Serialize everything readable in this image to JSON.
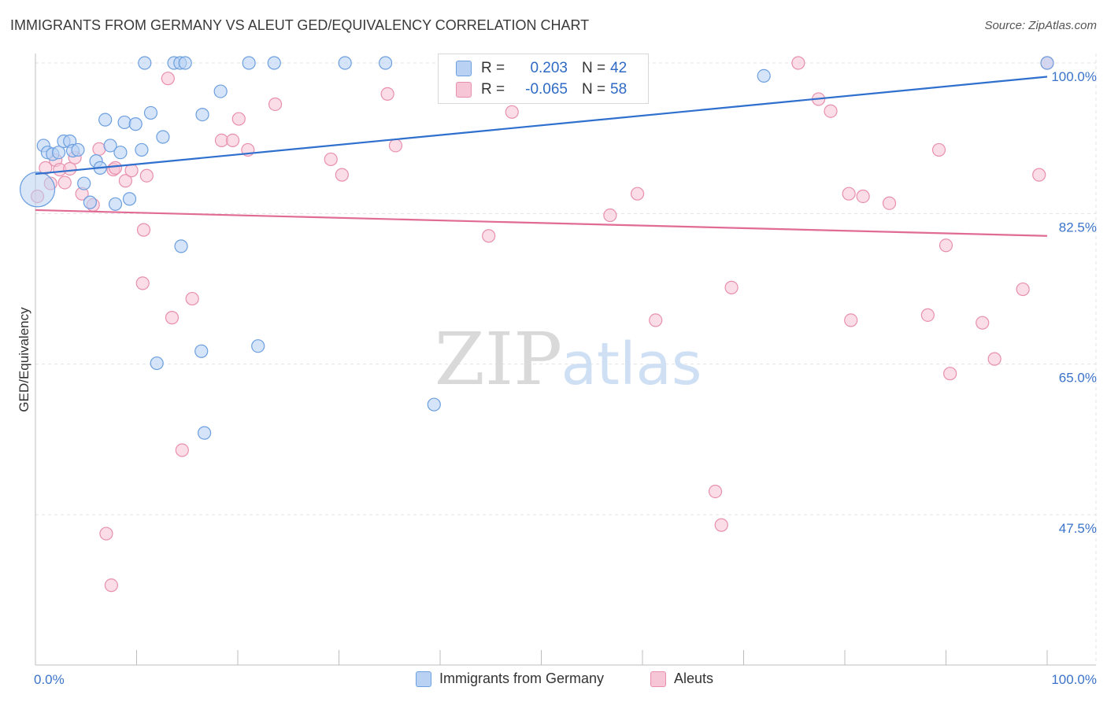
{
  "header": {
    "title": "IMMIGRANTS FROM GERMANY VS ALEUT GED/EQUIVALENCY CORRELATION CHART",
    "source": "Source: ZipAtlas.com"
  },
  "legend": {
    "r_label": "R =",
    "n_label": "N =",
    "series": [
      {
        "name": "Immigrants from Germany",
        "r": "0.203",
        "n": "42"
      },
      {
        "name": "Aleuts",
        "r": "-0.065",
        "n": "58"
      }
    ]
  },
  "watermark": {
    "part1": "ZIP",
    "part2": "atlas"
  },
  "colors": {
    "blue_fill": "#b9d2f3",
    "blue_stroke": "#6c9fdf",
    "blue_line": "#2f6fcd",
    "pink_fill": "#f7c6d6",
    "pink_stroke": "#e88fae",
    "pink_line": "#e06b95",
    "axis_label": "#3a73c9",
    "grid": "#e3e3e3"
  },
  "chart_data": {
    "type": "scatter",
    "ylabel": "GED/Equivalency",
    "xlim": [
      0,
      100
    ],
    "ylim": [
      30,
      101
    ],
    "x_tick_labels": [
      {
        "value": 0,
        "label": "0.0%"
      },
      {
        "value": 100,
        "label": "100.0%"
      }
    ],
    "y_tick_labels": [
      {
        "value": 100,
        "label": "100.0%"
      },
      {
        "value": 82.5,
        "label": "82.5%"
      },
      {
        "value": 65,
        "label": "65.0%"
      },
      {
        "value": 47.5,
        "label": "47.5%"
      }
    ],
    "series": [
      {
        "name": "Immigrants from Germany",
        "trend": {
          "x": [
            0,
            100
          ],
          "y": [
            87.1,
            98.4
          ]
        },
        "points": [
          {
            "x": 0.2,
            "y": 85.3,
            "big": true
          },
          {
            "x": 0.8,
            "y": 90.4
          },
          {
            "x": 1.2,
            "y": 89.6
          },
          {
            "x": 1.7,
            "y": 89.4
          },
          {
            "x": 2.3,
            "y": 89.6
          },
          {
            "x": 2.8,
            "y": 90.9
          },
          {
            "x": 3.4,
            "y": 90.9
          },
          {
            "x": 3.7,
            "y": 89.8
          },
          {
            "x": 4.2,
            "y": 89.9
          },
          {
            "x": 4.8,
            "y": 86.0
          },
          {
            "x": 5.4,
            "y": 83.8
          },
          {
            "x": 6.0,
            "y": 88.6
          },
          {
            "x": 6.4,
            "y": 87.8
          },
          {
            "x": 6.9,
            "y": 93.4
          },
          {
            "x": 7.4,
            "y": 90.4
          },
          {
            "x": 7.9,
            "y": 83.6
          },
          {
            "x": 8.4,
            "y": 89.6
          },
          {
            "x": 8.8,
            "y": 93.1
          },
          {
            "x": 9.3,
            "y": 84.2
          },
          {
            "x": 9.9,
            "y": 92.9
          },
          {
            "x": 10.5,
            "y": 89.9
          },
          {
            "x": 10.8,
            "y": 100.0
          },
          {
            "x": 11.4,
            "y": 94.2
          },
          {
            "x": 12.0,
            "y": 65.1
          },
          {
            "x": 12.6,
            "y": 91.4
          },
          {
            "x": 13.7,
            "y": 100.0
          },
          {
            "x": 14.3,
            "y": 100.0
          },
          {
            "x": 14.8,
            "y": 100.0
          },
          {
            "x": 14.4,
            "y": 78.7
          },
          {
            "x": 16.5,
            "y": 94.0
          },
          {
            "x": 16.4,
            "y": 66.5
          },
          {
            "x": 16.7,
            "y": 57.0
          },
          {
            "x": 18.3,
            "y": 96.7
          },
          {
            "x": 21.1,
            "y": 100.0
          },
          {
            "x": 22.0,
            "y": 67.1
          },
          {
            "x": 23.6,
            "y": 100.0
          },
          {
            "x": 30.6,
            "y": 100.0
          },
          {
            "x": 34.6,
            "y": 100.0
          },
          {
            "x": 39.4,
            "y": 60.3
          },
          {
            "x": 47.7,
            "y": 100.0
          },
          {
            "x": 72.0,
            "y": 98.5
          },
          {
            "x": 100.0,
            "y": 100.0
          }
        ]
      },
      {
        "name": "Aleuts",
        "trend": {
          "x": [
            0,
            100
          ],
          "y": [
            82.9,
            79.9
          ]
        },
        "points": [
          {
            "x": 0.2,
            "y": 84.5
          },
          {
            "x": 1.0,
            "y": 87.8
          },
          {
            "x": 1.5,
            "y": 86.0
          },
          {
            "x": 2.0,
            "y": 88.7
          },
          {
            "x": 2.4,
            "y": 87.6
          },
          {
            "x": 2.9,
            "y": 86.1
          },
          {
            "x": 3.4,
            "y": 87.7
          },
          {
            "x": 3.9,
            "y": 89.0
          },
          {
            "x": 4.6,
            "y": 84.8
          },
          {
            "x": 5.7,
            "y": 83.5
          },
          {
            "x": 6.3,
            "y": 90.0
          },
          {
            "x": 7.0,
            "y": 45.3
          },
          {
            "x": 7.7,
            "y": 87.6
          },
          {
            "x": 7.5,
            "y": 39.3
          },
          {
            "x": 7.9,
            "y": 87.8
          },
          {
            "x": 8.9,
            "y": 86.3
          },
          {
            "x": 9.5,
            "y": 87.5
          },
          {
            "x": 10.7,
            "y": 80.6
          },
          {
            "x": 10.6,
            "y": 74.4
          },
          {
            "x": 11.0,
            "y": 86.9
          },
          {
            "x": 13.1,
            "y": 98.2
          },
          {
            "x": 13.5,
            "y": 70.4
          },
          {
            "x": 14.5,
            "y": 55.0
          },
          {
            "x": 15.5,
            "y": 72.6
          },
          {
            "x": 18.4,
            "y": 91.0
          },
          {
            "x": 19.5,
            "y": 91.0
          },
          {
            "x": 20.1,
            "y": 93.5
          },
          {
            "x": 21.0,
            "y": 89.9
          },
          {
            "x": 23.7,
            "y": 95.2
          },
          {
            "x": 29.2,
            "y": 88.8
          },
          {
            "x": 30.3,
            "y": 87.0
          },
          {
            "x": 34.8,
            "y": 96.4
          },
          {
            "x": 35.6,
            "y": 90.4
          },
          {
            "x": 44.8,
            "y": 79.9
          },
          {
            "x": 47.1,
            "y": 94.3
          },
          {
            "x": 55.3,
            "y": 100.0
          },
          {
            "x": 56.8,
            "y": 82.3
          },
          {
            "x": 59.5,
            "y": 84.8
          },
          {
            "x": 61.3,
            "y": 70.1
          },
          {
            "x": 67.2,
            "y": 50.2
          },
          {
            "x": 67.8,
            "y": 46.3
          },
          {
            "x": 68.8,
            "y": 73.9
          },
          {
            "x": 75.4,
            "y": 100.0
          },
          {
            "x": 77.4,
            "y": 95.8
          },
          {
            "x": 78.6,
            "y": 94.4
          },
          {
            "x": 80.4,
            "y": 84.8
          },
          {
            "x": 80.6,
            "y": 70.1
          },
          {
            "x": 81.8,
            "y": 84.5
          },
          {
            "x": 84.4,
            "y": 83.7
          },
          {
            "x": 88.2,
            "y": 70.7
          },
          {
            "x": 89.3,
            "y": 89.9
          },
          {
            "x": 90.0,
            "y": 78.8
          },
          {
            "x": 90.4,
            "y": 63.9
          },
          {
            "x": 93.6,
            "y": 69.8
          },
          {
            "x": 94.8,
            "y": 65.6
          },
          {
            "x": 97.6,
            "y": 73.7
          },
          {
            "x": 99.2,
            "y": 87.0
          },
          {
            "x": 100.0,
            "y": 100.0
          }
        ]
      }
    ]
  }
}
